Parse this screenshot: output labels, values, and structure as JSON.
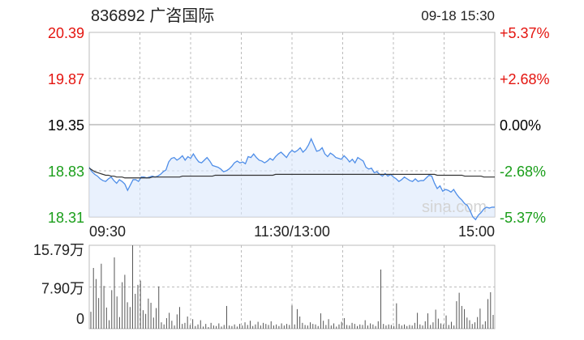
{
  "header": {
    "title": "836892 广咨国际",
    "datetime": "09-18 15:30"
  },
  "watermark": "sina.com",
  "colors": {
    "up": "#e4140f",
    "down": "#1a9e1a",
    "neutral": "#000000",
    "price_line": "#4f8ee8",
    "price_fill": "#dbe8fb",
    "avg_line": "#333333",
    "grid": "#bbbbbb",
    "volume_bar": "#555555"
  },
  "chart_data": [
    {
      "type": "line",
      "title": "",
      "x_ticks": [
        "09:30",
        "11:30/13:00",
        "15:00"
      ],
      "y_left_ticks": [
        "20.39",
        "19.87",
        "19.35",
        "18.83",
        "18.31"
      ],
      "y_right_ticks": [
        "+5.37%",
        "+2.68%",
        "0.00%",
        "-2.68%",
        "-5.37%"
      ],
      "ylim": [
        18.31,
        20.39
      ],
      "prev_close": 19.35,
      "grid": true,
      "series": [
        {
          "role": "price",
          "values": [
            18.87,
            18.82,
            18.79,
            18.77,
            18.74,
            18.72,
            18.71,
            18.74,
            18.76,
            18.72,
            18.69,
            18.73,
            18.71,
            18.68,
            18.61,
            18.67,
            18.73,
            18.73,
            18.71,
            18.76,
            18.76,
            18.75,
            18.76,
            18.77,
            18.76,
            18.77,
            18.79,
            18.82,
            18.84,
            18.93,
            18.97,
            18.98,
            18.95,
            18.97,
            19.0,
            18.95,
            18.99,
            18.97,
            19.02,
            18.97,
            18.93,
            18.92,
            18.95,
            18.98,
            18.94,
            18.89,
            18.88,
            18.87,
            18.85,
            18.82,
            18.83,
            18.85,
            18.88,
            18.92,
            18.94,
            18.92,
            18.93,
            18.91,
            18.99,
            18.98,
            19.02,
            18.98,
            18.95,
            18.94,
            18.92,
            18.94,
            18.97,
            18.95,
            18.99,
            19.02,
            19.04,
            19.01,
            18.98,
            19.03,
            19.06,
            19.04,
            19.06,
            19.09,
            19.04,
            19.07,
            19.12,
            19.19,
            19.12,
            19.05,
            19.06,
            19.09,
            19.02,
            18.99,
            19.03,
            19.01,
            18.98,
            18.97,
            18.96,
            19.0,
            18.97,
            18.93,
            18.96,
            18.92,
            18.98,
            18.96,
            18.94,
            18.87,
            18.85,
            18.86,
            18.81,
            18.82,
            18.79,
            18.77,
            18.8,
            18.77,
            18.79,
            18.76,
            18.74,
            18.71,
            18.73,
            18.76,
            18.74,
            18.72,
            18.71,
            18.74,
            18.71,
            18.72,
            18.72,
            18.75,
            18.78,
            18.77,
            18.69,
            18.63,
            18.66,
            18.6,
            18.62,
            18.61,
            18.59,
            18.62,
            18.57,
            18.53,
            18.5,
            18.46,
            18.44,
            18.38,
            18.31,
            18.28,
            18.33,
            18.36,
            18.4,
            18.42,
            18.41,
            18.42,
            18.42
          ]
        },
        {
          "role": "average",
          "values": [
            18.86,
            18.84,
            18.82,
            18.81,
            18.8,
            18.79,
            18.78,
            18.78,
            18.77,
            18.77,
            18.76,
            18.76,
            18.76,
            18.75,
            18.75,
            18.75,
            18.75,
            18.75,
            18.75,
            18.75,
            18.75,
            18.75,
            18.75,
            18.76,
            18.76,
            18.76,
            18.76,
            18.76,
            18.76,
            18.76,
            18.76,
            18.76,
            18.76,
            18.76,
            18.77,
            18.77,
            18.77,
            18.77,
            18.77,
            18.77,
            18.77,
            18.77,
            18.77,
            18.77,
            18.77,
            18.77,
            18.78,
            18.78,
            18.78,
            18.78,
            18.78,
            18.78,
            18.78,
            18.78,
            18.78,
            18.78,
            18.78,
            18.78,
            18.78,
            18.78,
            18.78,
            18.78,
            18.78,
            18.78,
            18.78,
            18.78,
            18.78,
            18.78,
            18.79,
            18.79,
            18.79,
            18.79,
            18.79,
            18.79,
            18.79,
            18.79,
            18.79,
            18.79,
            18.79,
            18.79,
            18.79,
            18.79,
            18.79,
            18.79,
            18.79,
            18.79,
            18.79,
            18.79,
            18.79,
            18.79,
            18.79,
            18.79,
            18.79,
            18.79,
            18.79,
            18.79,
            18.79,
            18.79,
            18.79,
            18.79,
            18.79,
            18.79,
            18.79,
            18.79,
            18.79,
            18.79,
            18.79,
            18.79,
            18.79,
            18.79,
            18.79,
            18.79,
            18.79,
            18.79,
            18.79,
            18.79,
            18.79,
            18.79,
            18.79,
            18.79,
            18.79,
            18.79,
            18.79,
            18.79,
            18.79,
            18.79,
            18.79,
            18.78,
            18.78,
            18.78,
            18.78,
            18.78,
            18.78,
            18.78,
            18.78,
            18.78,
            18.78,
            18.77,
            18.77,
            18.77,
            18.77,
            18.77,
            18.77,
            18.77,
            18.76,
            18.76,
            18.76,
            18.76,
            18.76
          ]
        }
      ]
    },
    {
      "type": "bar",
      "title": "",
      "y_ticks": [
        "15.79万",
        "7.90万",
        "0"
      ],
      "ylim": [
        0,
        15.79
      ],
      "values": [
        3.2,
        11.5,
        9.4,
        5.8,
        12.3,
        8.1,
        4.0,
        1.6,
        7.3,
        13.5,
        6.1,
        2.2,
        8.8,
        10.2,
        5.0,
        4.1,
        15.79,
        6.6,
        8.3,
        9.1,
        3.5,
        2.8,
        5.7,
        4.9,
        2.1,
        3.9,
        8.0,
        1.2,
        0.8,
        2.0,
        3.0,
        1.5,
        0.6,
        2.7,
        4.1,
        0.9,
        1.1,
        2.3,
        0.7,
        1.8,
        0.5,
        0.8,
        1.6,
        0.4,
        0.9,
        0.3,
        1.1,
        0.6,
        0.5,
        1.0,
        0.4,
        0.7,
        4.3,
        0.6,
        0.5,
        0.8,
        0.4,
        0.9,
        0.6,
        1.2,
        0.7,
        1.5,
        0.5,
        0.8,
        1.3,
        0.6,
        1.1,
        0.9,
        0.7,
        1.4,
        0.6,
        0.8,
        0.5,
        1.0,
        0.6,
        0.9,
        0.7,
        4.4,
        0.8,
        3.7,
        2.3,
        1.1,
        0.7,
        0.6,
        1.2,
        0.9,
        0.8,
        0.5,
        2.9,
        1.5,
        0.7,
        1.8,
        0.6,
        1.0,
        0.4,
        0.8,
        1.3,
        2.0,
        0.7,
        0.6,
        1.1,
        0.9,
        0.5,
        0.8,
        0.7,
        1.6,
        0.6,
        1.0,
        0.8,
        0.5,
        1.4,
        11.2,
        0.9,
        0.6,
        0.8,
        0.7,
        0.5,
        4.8,
        0.9,
        0.6,
        0.8,
        0.5,
        0.7,
        0.6,
        1.1,
        3.0,
        0.8,
        0.6,
        1.4,
        2.9,
        0.7,
        1.2,
        3.6,
        1.9,
        1.0,
        0.8,
        2.5,
        0.7,
        1.3,
        0.6,
        5.2,
        6.8,
        4.3,
        3.7,
        2.1,
        1.6,
        0.9,
        1.2,
        2.2,
        3.8,
        0.8,
        1.4,
        5.6,
        6.9,
        2.6
      ]
    }
  ]
}
